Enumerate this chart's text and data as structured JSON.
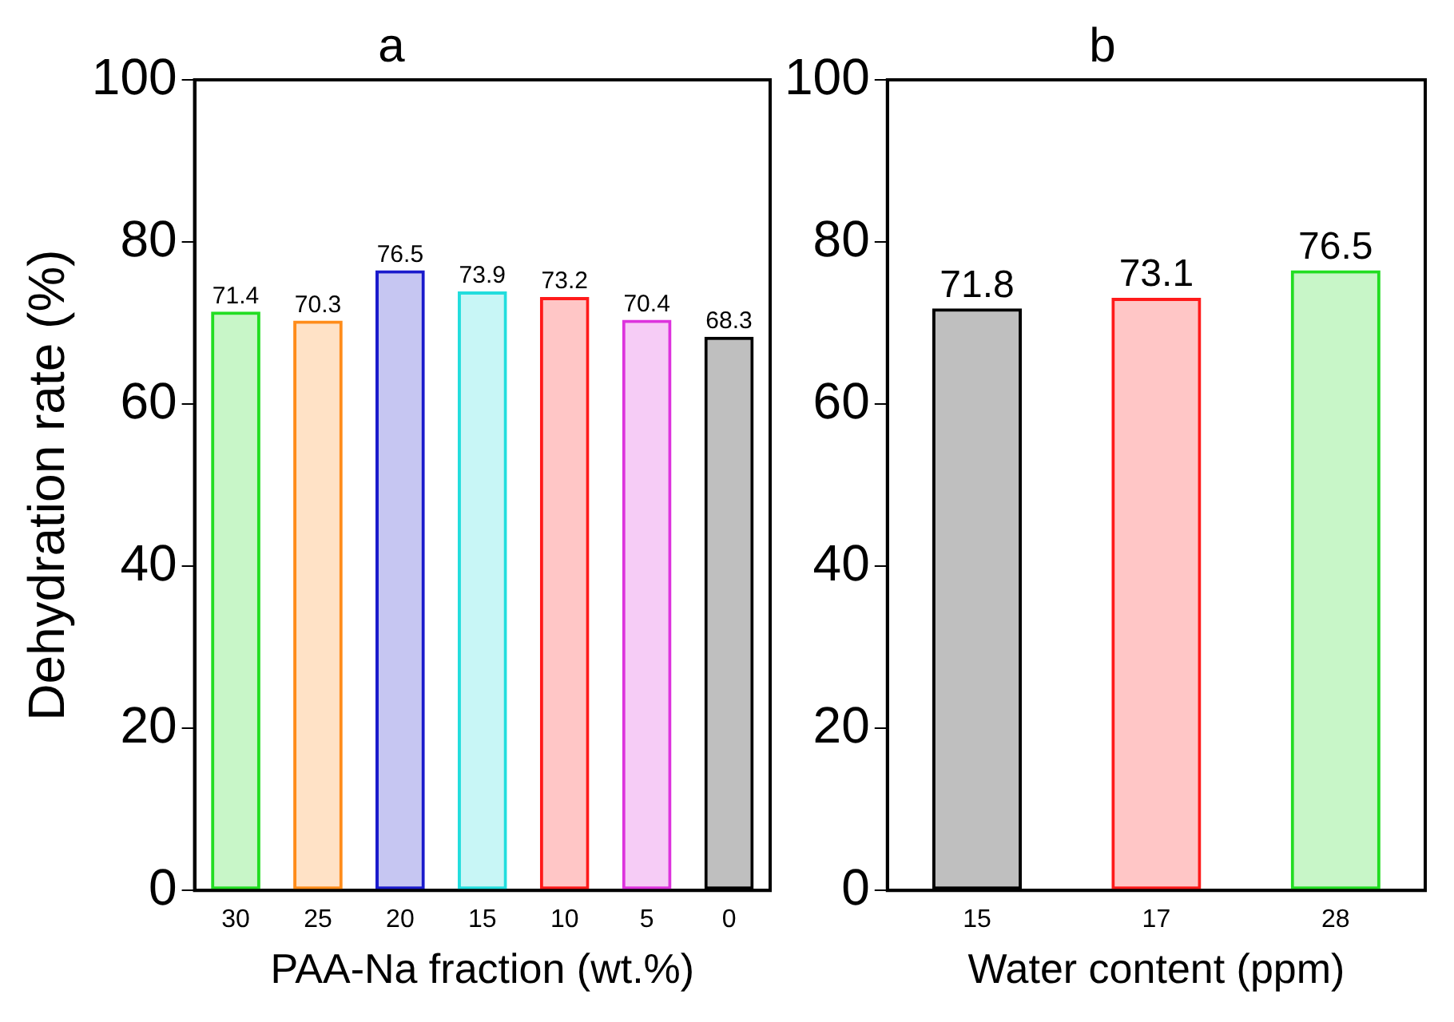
{
  "chart_data": [
    {
      "type": "bar",
      "title": "a",
      "xlabel": "PAA-Na fraction (wt.%)",
      "ylabel": "Dehydration rate (%)",
      "categories": [
        "30",
        "25",
        "20",
        "15",
        "10",
        "5",
        "0"
      ],
      "values": [
        71.4,
        70.3,
        76.5,
        73.9,
        73.2,
        70.4,
        68.3
      ],
      "colors": [
        "#22dd22",
        "#ff8c1a",
        "#1a1acc",
        "#22dddd",
        "#ff1a1a",
        "#dd33dd",
        "#000000"
      ],
      "ylim": [
        0,
        100
      ],
      "yticks": [
        0,
        20,
        40,
        60,
        80,
        100
      ],
      "grid": false,
      "legend": false,
      "data_labels": true
    },
    {
      "type": "bar",
      "title": "b",
      "xlabel": "Water content (ppm)",
      "categories": [
        "15",
        "17",
        "28"
      ],
      "values": [
        71.8,
        73.1,
        76.5
      ],
      "colors": [
        "#000000",
        "#ff1a1a",
        "#22dd22"
      ],
      "ylim": [
        0,
        100
      ],
      "yticks": [
        0,
        20,
        40,
        60,
        80,
        100
      ],
      "grid": false,
      "legend": false,
      "data_labels": true
    }
  ]
}
